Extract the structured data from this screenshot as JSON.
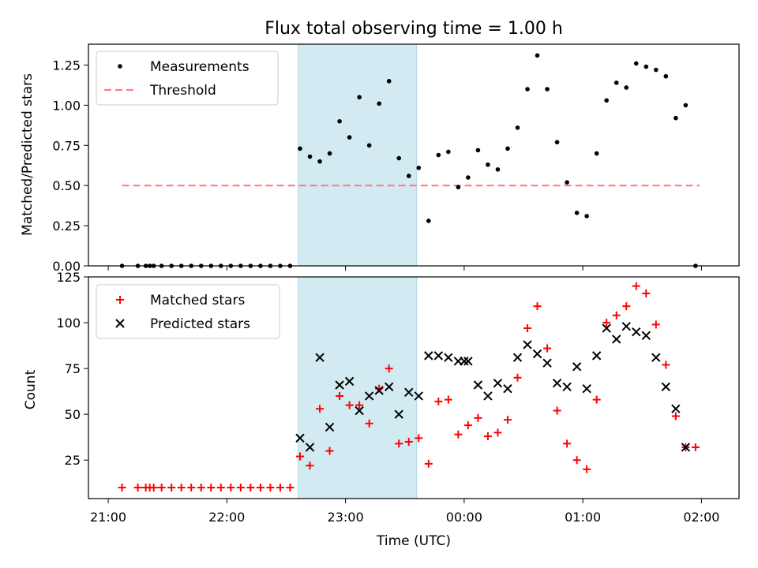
{
  "title": "Flux total observing time = 1.00 h",
  "colors": {
    "measurements": "#000000",
    "threshold": "#ff7f7f",
    "matched": "#ff0000",
    "predicted": "#000000",
    "highlight": "#add8e6"
  },
  "chart_data": [
    {
      "type": "scatter",
      "title": "Flux total observing time = 1.00 h",
      "ylabel": "Matched/Predicted stars",
      "xlabel": "",
      "ylim": [
        0,
        1.38
      ],
      "yticks": [
        "0.00",
        "0.25",
        "0.50",
        "0.75",
        "1.00",
        "1.25"
      ],
      "legend": {
        "position": "upper left",
        "entries": [
          "Measurements",
          "Threshold"
        ]
      },
      "highlight_span": [
        "22:36",
        "23:36"
      ],
      "threshold": {
        "name": "Threshold",
        "value": 0.5,
        "x_range": [
          "21:07",
          "01:59"
        ]
      },
      "series": [
        {
          "name": "Measurements",
          "x": [
            "21:07",
            "21:15",
            "21:19",
            "21:21",
            "21:23",
            "21:27",
            "21:32",
            "21:37",
            "21:42",
            "21:47",
            "21:52",
            "21:57",
            "22:02",
            "22:07",
            "22:12",
            "22:17",
            "22:22",
            "22:27",
            "22:32",
            "22:37",
            "22:42",
            "22:47",
            "22:52",
            "22:57",
            "23:02",
            "23:07",
            "23:12",
            "23:17",
            "23:22",
            "23:27",
            "23:32",
            "23:37",
            "23:42",
            "23:47",
            "23:52",
            "23:57",
            "00:02",
            "00:07",
            "00:12",
            "00:17",
            "00:22",
            "00:27",
            "00:32",
            "00:37",
            "00:42",
            "00:47",
            "00:52",
            "00:57",
            "01:02",
            "01:07",
            "01:12",
            "01:17",
            "01:22",
            "01:27",
            "01:32",
            "01:37",
            "01:42",
            "01:47",
            "01:52",
            "01:57"
          ],
          "y": [
            0,
            0,
            0,
            0,
            0,
            0,
            0,
            0,
            0,
            0,
            0,
            0,
            0,
            0,
            0,
            0,
            0,
            0,
            0,
            0.73,
            0.68,
            0.65,
            0.7,
            0.9,
            0.8,
            1.05,
            0.75,
            1.01,
            1.15,
            0.67,
            0.56,
            0.61,
            0.28,
            0.69,
            0.71,
            0.49,
            0.55,
            0.72,
            0.63,
            0.6,
            0.73,
            0.86,
            1.1,
            1.31,
            1.1,
            0.77,
            0.52,
            0.33,
            0.31,
            0.7,
            1.03,
            1.14,
            1.11,
            1.26,
            1.24,
            1.22,
            1.18,
            0.92,
            1.0,
            0
          ]
        }
      ]
    },
    {
      "type": "scatter",
      "xlabel": "Time (UTC)",
      "ylabel": "Count",
      "ylim": [
        4,
        125
      ],
      "yticks": [
        "25",
        "50",
        "75",
        "100",
        "125"
      ],
      "xticks": [
        "21:00",
        "22:00",
        "23:00",
        "00:00",
        "01:00",
        "02:00"
      ],
      "legend": {
        "position": "upper left",
        "entries": [
          "Matched stars",
          "Predicted stars"
        ]
      },
      "highlight_span": [
        "22:36",
        "23:36"
      ],
      "series": [
        {
          "name": "Matched stars",
          "x": [
            "21:07",
            "21:15",
            "21:19",
            "21:21",
            "21:23",
            "21:27",
            "21:32",
            "21:37",
            "21:42",
            "21:47",
            "21:52",
            "21:57",
            "22:02",
            "22:07",
            "22:12",
            "22:17",
            "22:22",
            "22:27",
            "22:32",
            "22:37",
            "22:42",
            "22:47",
            "22:52",
            "22:57",
            "23:02",
            "23:07",
            "23:12",
            "23:17",
            "23:22",
            "23:27",
            "23:32",
            "23:37",
            "23:42",
            "23:47",
            "23:52",
            "23:57",
            "00:02",
            "00:07",
            "00:12",
            "00:17",
            "00:22",
            "00:27",
            "00:32",
            "00:37",
            "00:42",
            "00:47",
            "00:52",
            "00:57",
            "01:02",
            "01:07",
            "01:12",
            "01:17",
            "01:22",
            "01:27",
            "01:32",
            "01:37",
            "01:42",
            "01:47",
            "01:52",
            "01:57"
          ],
          "y": [
            10,
            10,
            10,
            10,
            10,
            10,
            10,
            10,
            10,
            10,
            10,
            10,
            10,
            10,
            10,
            10,
            10,
            10,
            10,
            27,
            22,
            53,
            30,
            60,
            55,
            55,
            45,
            64,
            75,
            34,
            35,
            37,
            23,
            57,
            58,
            39,
            44,
            48,
            38,
            40,
            47,
            70,
            97,
            109,
            86,
            52,
            34,
            25,
            20,
            58,
            100,
            104,
            109,
            120,
            116,
            99,
            77,
            49,
            32,
            32
          ]
        },
        {
          "name": "Predicted stars",
          "x": [
            "22:37",
            "22:42",
            "22:47",
            "22:52",
            "22:57",
            "23:02",
            "23:07",
            "23:12",
            "23:17",
            "23:22",
            "23:27",
            "23:32",
            "23:37",
            "23:42",
            "23:47",
            "23:52",
            "23:57",
            "00:00",
            "00:02",
            "00:07",
            "00:12",
            "00:17",
            "00:22",
            "00:27",
            "00:32",
            "00:37",
            "00:42",
            "00:47",
            "00:52",
            "00:57",
            "01:02",
            "01:07",
            "01:12",
            "01:17",
            "01:22",
            "01:27",
            "01:32",
            "01:37",
            "01:42",
            "01:47",
            "01:52"
          ],
          "y": [
            37,
            32,
            81,
            43,
            66,
            68,
            52,
            60,
            63,
            65,
            50,
            62,
            60,
            82,
            82,
            81,
            79,
            79,
            79,
            66,
            60,
            67,
            64,
            81,
            88,
            83,
            78,
            67,
            65,
            76,
            64,
            82,
            97,
            91,
            98,
            95,
            93,
            81,
            65,
            53,
            32
          ]
        }
      ]
    }
  ]
}
